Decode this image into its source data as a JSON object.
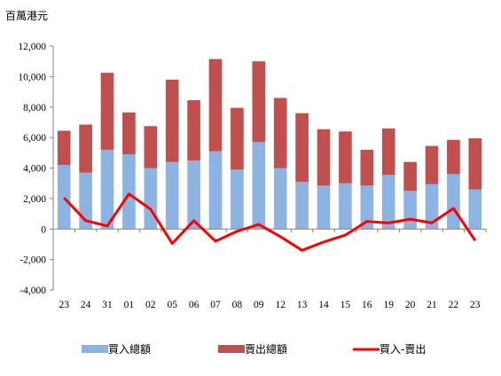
{
  "chart_data": {
    "type": "bar",
    "stacked": true,
    "unit_label": "百萬港元",
    "categories": [
      "23",
      "24",
      "31",
      "01",
      "02",
      "05",
      "06",
      "07",
      "08",
      "09",
      "12",
      "13",
      "14",
      "15",
      "16",
      "19",
      "20",
      "21",
      "22",
      "23"
    ],
    "series": [
      {
        "name": "買入總額",
        "type": "bar",
        "color": "#8db3e2",
        "values": [
          4200,
          3700,
          5200,
          4900,
          4000,
          4400,
          4500,
          5100,
          3900,
          5700,
          4000,
          3100,
          2850,
          3000,
          2850,
          3550,
          2500,
          2950,
          3600,
          2600
        ]
      },
      {
        "name": "賣出總額",
        "type": "bar",
        "color": "#c0504d",
        "values": [
          2250,
          3150,
          5050,
          2750,
          2750,
          5400,
          3950,
          6050,
          4050,
          5300,
          4600,
          4500,
          3700,
          3400,
          2350,
          3050,
          1900,
          2500,
          2250,
          3350
        ]
      },
      {
        "name": "買入-賣出",
        "type": "line",
        "color": "#ff0000",
        "values": [
          2050,
          550,
          200,
          2300,
          1300,
          -950,
          550,
          -800,
          -150,
          300,
          -500,
          -1400,
          -850,
          -400,
          500,
          400,
          650,
          400,
          1350,
          -750
        ]
      }
    ],
    "ylim": [
      -4000,
      12000
    ],
    "yticks": [
      "-4,000",
      "-2,000",
      "0",
      "2,000",
      "4,000",
      "6,000",
      "8,000",
      "10,000",
      "12,000"
    ],
    "ytick_values": [
      -4000,
      -2000,
      0,
      2000,
      4000,
      6000,
      8000,
      10000,
      12000
    ],
    "grid": false,
    "legend_position": "bottom"
  }
}
